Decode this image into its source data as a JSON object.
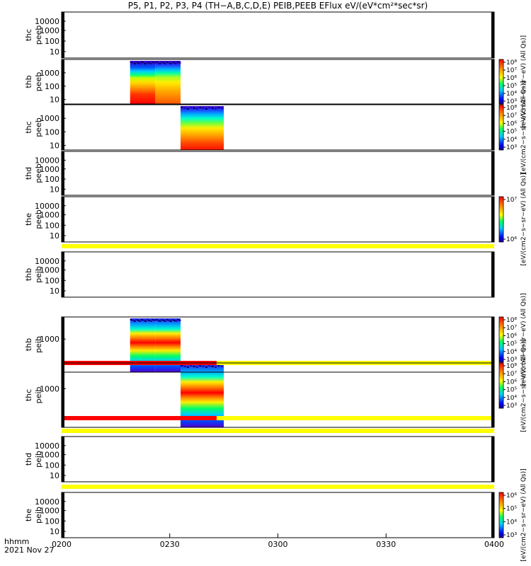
{
  "chart_data": {
    "type": "heatmap",
    "title": "P5, P1, P2, P3, P4 (TH−A,B,C,D,E) PEIB,PEEB EFlux eV/(eV*cm²*sec*sr)",
    "x_axis": {
      "label_line1": "hhmm",
      "label_line2": "2021 Nov 27",
      "range": [
        0,
        120
      ],
      "units": "minutes after 0200 UT",
      "ticks": [
        {
          "value": 0,
          "label": "0200"
        },
        {
          "value": 30,
          "label": "0230"
        },
        {
          "value": 60,
          "label": "0300"
        },
        {
          "value": 90,
          "label": "0330"
        },
        {
          "value": 120,
          "label": "0400"
        }
      ]
    },
    "panels": [
      {
        "probe": "thc",
        "instrument": "peeb",
        "yticks": [
          "10000",
          "1000",
          "100",
          "10"
        ],
        "data": []
      },
      {
        "probe": "thb",
        "instrument": "peeb",
        "yticks": [
          "1000",
          "100",
          "10"
        ],
        "data": [
          {
            "start": 19,
            "end": 26
          },
          {
            "start": 26,
            "end": 33
          }
        ]
      },
      {
        "probe": "thc",
        "instrument": "peeb",
        "yticks": [
          "1000",
          "100",
          "10"
        ],
        "data": [
          {
            "start": 33,
            "end": 45
          }
        ]
      },
      {
        "probe": "thd",
        "instrument": "peeb",
        "yticks": [
          "10000",
          "1000",
          "100",
          "10"
        ],
        "data": []
      },
      {
        "probe": "the",
        "instrument": "peeb",
        "yticks": [
          "10000",
          "1000",
          "100",
          "10"
        ],
        "data": []
      },
      {
        "probe": "thb",
        "instrument": "peib",
        "yticks": [
          "10000",
          "1000",
          "100",
          "10"
        ],
        "data": []
      },
      {
        "probe": "thb",
        "instrument": "peib",
        "yticks": [
          "1000"
        ],
        "data": [
          {
            "start": 19,
            "end": 26
          },
          {
            "start": 26,
            "end": 33
          }
        ]
      },
      {
        "probe": "thc",
        "instrument": "peib",
        "yticks": [
          "1000"
        ],
        "data": [
          {
            "start": 33,
            "end": 45
          }
        ]
      },
      {
        "probe": "thd",
        "instrument": "peib",
        "yticks": [
          "10000",
          "1000",
          "100",
          "10"
        ],
        "data": []
      },
      {
        "probe": "the",
        "instrument": "peib",
        "yticks": [
          "10000",
          "1000",
          "100",
          "10"
        ],
        "data": []
      }
    ],
    "status_bars": [
      {
        "below_panel": 5,
        "segments": [
          {
            "start": 0,
            "end": 120,
            "color": "#ffff00"
          }
        ]
      },
      {
        "below_panel": 7,
        "segments": [
          {
            "start": 0,
            "end": 43,
            "color": "#ff0000"
          },
          {
            "start": 43,
            "end": 120,
            "color": "#ffff00"
          }
        ]
      },
      {
        "below_panel": 8,
        "segments": [
          {
            "start": 0,
            "end": 43,
            "color": "#ff0000"
          },
          {
            "start": 43,
            "end": 120,
            "color": "#ffff00"
          }
        ]
      },
      {
        "below_panel": 9,
        "segments": [
          {
            "start": 0,
            "end": 120,
            "color": "#ffff00"
          }
        ]
      },
      {
        "below_panel": 10,
        "segments": [
          {
            "start": 0,
            "end": 120,
            "color": "#ffff00"
          }
        ]
      }
    ],
    "colorbars": [
      {
        "ticks": [
          "10⁸",
          "10⁷",
          "10⁶",
          "10⁵",
          "10⁴",
          "10³"
        ],
        "label": "[eV/(cm2−s−sr−eV) (All Qs)]"
      },
      {
        "ticks": [
          "10⁸",
          "10⁷",
          "10⁶",
          "10⁵",
          "10⁴",
          "10³"
        ],
        "label": "[eV/(cm2−s−sr−eV) (All Qs)]"
      },
      {
        "ticks": [
          "10⁷",
          "10⁶"
        ],
        "label": "[eV/(cm2−s−sr−eV) (All Qs)]"
      },
      {
        "ticks": [
          "10⁸",
          "10⁷",
          "10⁶",
          "10⁵",
          "10⁴",
          "10³"
        ],
        "label": "[eV/(cm2−s−sr−eV) (All Qs)]"
      },
      {
        "ticks": [
          "10⁸",
          "10⁷",
          "10⁶",
          "10⁵",
          "10⁴",
          "10³"
        ],
        "label": "[eV/(cm2−s−sr−eV) (All Qs)]"
      },
      {
        "ticks": [
          "10⁶",
          "10⁵",
          "10⁴",
          "10³"
        ],
        "label": "[eV/(cm2−s−sr−eV) (All Qs)]"
      }
    ]
  }
}
